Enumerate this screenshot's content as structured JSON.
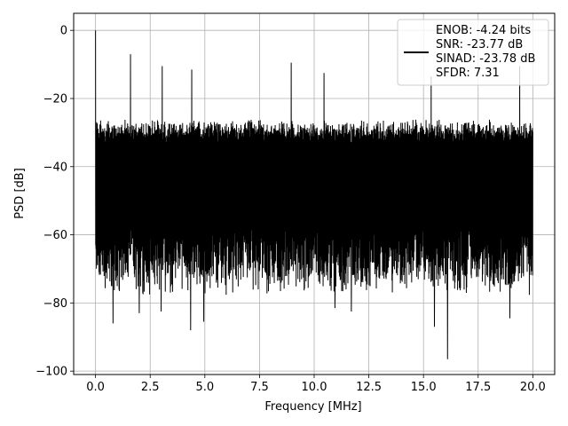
{
  "chart_data": {
    "type": "line",
    "title": "",
    "xlabel": "Frequency [MHz]",
    "ylabel": "PSD [dB]",
    "xlim": [
      -1.0,
      21.0
    ],
    "ylim": [
      -101.0,
      5.0
    ],
    "xticks": [
      0.0,
      2.5,
      5.0,
      7.5,
      10.0,
      12.5,
      15.0,
      17.5,
      20.0
    ],
    "xtick_labels": [
      "0.0",
      "2.5",
      "5.0",
      "7.5",
      "10.0",
      "12.5",
      "15.0",
      "17.5",
      "20.0"
    ],
    "yticks": [
      0,
      -20,
      -40,
      -60,
      -80,
      -100
    ],
    "ytick_labels": [
      "0",
      "−20",
      "−40",
      "−60",
      "−80",
      "−100"
    ],
    "grid": true,
    "legend_position": "top-right",
    "line_color": "#000000",
    "series": [
      {
        "legend_lines": [
          "ENOB: -4.24 bits",
          "SNR: -23.77 dB",
          "SINAD: -23.78 dB",
          "SFDR: 7.31"
        ],
        "x_range": [
          0.0,
          20.0
        ],
        "noise_envelope": {
          "upper_db": [
            -30,
            -26
          ],
          "lower_db": [
            -78,
            -62
          ]
        },
        "peaks": [
          {
            "x": 0.0,
            "y": 0.0
          },
          {
            "x": 1.6,
            "y": -7.0
          },
          {
            "x": 3.05,
            "y": -10.5
          },
          {
            "x": 4.4,
            "y": -11.5
          },
          {
            "x": 8.95,
            "y": -9.5
          },
          {
            "x": 19.4,
            "y": -10.5
          },
          {
            "x": 15.35,
            "y": -13.5
          },
          {
            "x": 10.45,
            "y": -12.5
          }
        ],
        "dips": [
          {
            "x": 16.1,
            "y": -96.5
          },
          {
            "x": 4.35,
            "y": -88.0
          },
          {
            "x": 15.5,
            "y": -87.0
          },
          {
            "x": 0.8,
            "y": -86.0
          },
          {
            "x": 4.95,
            "y": -85.5
          },
          {
            "x": 10.95,
            "y": -81.5
          },
          {
            "x": 11.7,
            "y": -82.5
          },
          {
            "x": 18.95,
            "y": -84.5
          },
          {
            "x": 2.0,
            "y": -83.0
          },
          {
            "x": 3.0,
            "y": -82.5
          }
        ]
      }
    ]
  }
}
